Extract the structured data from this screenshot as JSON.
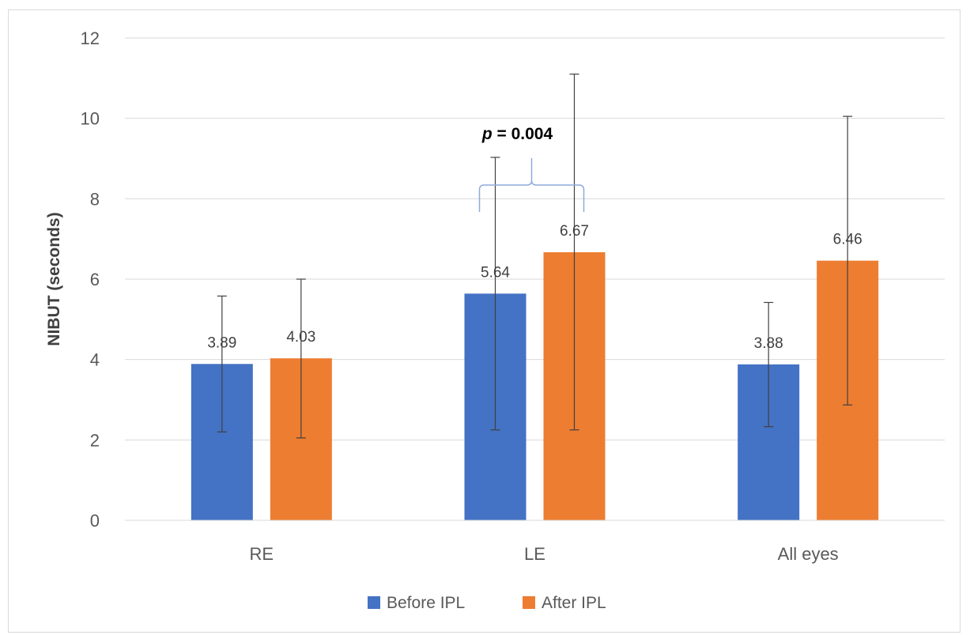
{
  "chart_data": {
    "type": "bar",
    "categories": [
      "RE",
      "LE",
      "All eyes"
    ],
    "series": [
      {
        "name": "Before IPL",
        "color": "#4472C4",
        "values": [
          3.89,
          5.64,
          3.88
        ],
        "error_low": [
          2.2,
          2.25,
          2.33
        ],
        "error_high": [
          5.58,
          9.03,
          5.42
        ]
      },
      {
        "name": "After IPL",
        "color": "#ED7D31",
        "values": [
          4.03,
          6.67,
          6.46
        ],
        "error_low": [
          2.05,
          2.25,
          2.87
        ],
        "error_high": [
          6.0,
          11.1,
          10.05
        ]
      }
    ],
    "data_labels": [
      [
        "3.89",
        "5.64",
        "3.88"
      ],
      [
        "4.03",
        "6.67",
        "6.46"
      ]
    ],
    "ylabel": "NIBUT (seconds)",
    "xlabel": "",
    "ylim": [
      0,
      12
    ],
    "yticks": [
      "0",
      "2",
      "4",
      "6",
      "8",
      "10",
      "12"
    ],
    "grid": true,
    "legend_position": "bottom",
    "annotation": {
      "prefix": "p",
      "text": " = 0.004",
      "category": "LE",
      "bracket_color": "#8FAADC"
    }
  }
}
